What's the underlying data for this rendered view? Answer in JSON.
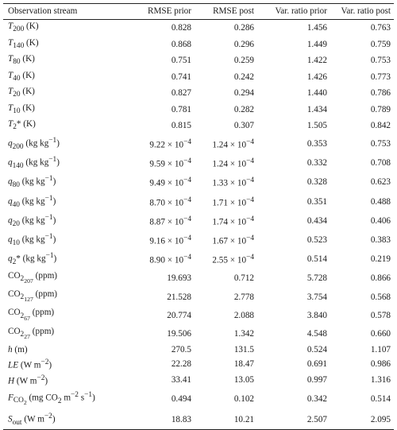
{
  "table": {
    "headers": [
      "Observation stream",
      "RMSE prior",
      "RMSE post",
      "Var. ratio prior",
      "Var. ratio post"
    ],
    "rows": [
      {
        "stream": "T200 (K)",
        "stream_html": "<i>T</i><sub>200</sub> (K)",
        "rmse_prior": "0.828",
        "rmse_post": "0.286",
        "var_prior": "1.456",
        "var_post": "0.763"
      },
      {
        "stream": "T140 (K)",
        "stream_html": "<i>T</i><sub>140</sub> (K)",
        "rmse_prior": "0.868",
        "rmse_post": "0.296",
        "var_prior": "1.449",
        "var_post": "0.759"
      },
      {
        "stream": "T80 (K)",
        "stream_html": "<i>T</i><sub>80</sub> (K)",
        "rmse_prior": "0.751",
        "rmse_post": "0.259",
        "var_prior": "1.422",
        "var_post": "0.753"
      },
      {
        "stream": "T40 (K)",
        "stream_html": "<i>T</i><sub>40</sub> (K)",
        "rmse_prior": "0.741",
        "rmse_post": "0.242",
        "var_prior": "1.426",
        "var_post": "0.773"
      },
      {
        "stream": "T20 (K)",
        "stream_html": "<i>T</i><sub>20</sub> (K)",
        "rmse_prior": "0.827",
        "rmse_post": "0.294",
        "var_prior": "1.440",
        "var_post": "0.786"
      },
      {
        "stream": "T10 (K)",
        "stream_html": "<i>T</i><sub>10</sub> (K)",
        "rmse_prior": "0.781",
        "rmse_post": "0.282",
        "var_prior": "1.434",
        "var_post": "0.789"
      },
      {
        "stream": "T2* (K)",
        "stream_html": "<i>T</i><sub>2</sub>* (K)",
        "rmse_prior": "0.815",
        "rmse_post": "0.307",
        "var_prior": "1.505",
        "var_post": "0.842"
      },
      {
        "stream": "q200 (kg kg−1)",
        "stream_html": "<i>q</i><sub>200</sub> (kg kg<sup>−1</sup>)",
        "rmse_prior": "9.22 × 10−4",
        "rmse_prior_html": "9.22 × 10<sup>−4</sup>",
        "rmse_post": "1.24 × 10−4",
        "rmse_post_html": "1.24 × 10<sup>−4</sup>",
        "var_prior": "0.353",
        "var_post": "0.753"
      },
      {
        "stream": "q140 (kg kg−1)",
        "stream_html": "<i>q</i><sub>140</sub> (kg kg<sup>−1</sup>)",
        "rmse_prior": "9.59 × 10−4",
        "rmse_prior_html": "9.59 × 10<sup>−4</sup>",
        "rmse_post": "1.24 × 10−4",
        "rmse_post_html": "1.24 × 10<sup>−4</sup>",
        "var_prior": "0.332",
        "var_post": "0.708"
      },
      {
        "stream": "q80 (kg kg−1)",
        "stream_html": "<i>q</i><sub>80</sub> (kg kg<sup>−1</sup>)",
        "rmse_prior": "9.49 × 10−4",
        "rmse_prior_html": "9.49 × 10<sup>−4</sup>",
        "rmse_post": "1.33 × 10−4",
        "rmse_post_html": "1.33 × 10<sup>−4</sup>",
        "var_prior": "0.328",
        "var_post": "0.623"
      },
      {
        "stream": "q40 (kg kg−1)",
        "stream_html": "<i>q</i><sub>40</sub> (kg kg<sup>−1</sup>)",
        "rmse_prior": "8.70 × 10−4",
        "rmse_prior_html": "8.70 × 10<sup>−4</sup>",
        "rmse_post": "1.71 × 10−4",
        "rmse_post_html": "1.71 × 10<sup>−4</sup>",
        "var_prior": "0.351",
        "var_post": "0.488"
      },
      {
        "stream": "q20 (kg kg−1)",
        "stream_html": "<i>q</i><sub>20</sub> (kg kg<sup>−1</sup>)",
        "rmse_prior": "8.87 × 10−4",
        "rmse_prior_html": "8.87 × 10<sup>−4</sup>",
        "rmse_post": "1.74 × 10−4",
        "rmse_post_html": "1.74 × 10<sup>−4</sup>",
        "var_prior": "0.434",
        "var_post": "0.406"
      },
      {
        "stream": "q10 (kg kg−1)",
        "stream_html": "<i>q</i><sub>10</sub> (kg kg<sup>−1</sup>)",
        "rmse_prior": "9.16 × 10−4",
        "rmse_prior_html": "9.16 × 10<sup>−4</sup>",
        "rmse_post": "1.67 × 10−4",
        "rmse_post_html": "1.67 × 10<sup>−4</sup>",
        "var_prior": "0.523",
        "var_post": "0.383"
      },
      {
        "stream": "q2* (kg kg−1)",
        "stream_html": "<i>q</i><sub>2</sub>* (kg kg<sup>−1</sup>)",
        "rmse_prior": "8.90 × 10−4",
        "rmse_prior_html": "8.90 × 10<sup>−4</sup>",
        "rmse_post": "2.55 × 10−4",
        "rmse_post_html": "2.55 × 10<sup>−4</sup>",
        "var_prior": "0.514",
        "var_post": "0.219"
      },
      {
        "stream": "CO2207 (ppm)",
        "stream_html": "CO<sub>2<sub>207</sub></sub> (ppm)",
        "rmse_prior": "19.693",
        "rmse_post": "0.712",
        "var_prior": "5.728",
        "var_post": "0.866"
      },
      {
        "stream": "CO2127 (ppm)",
        "stream_html": "CO<sub>2<sub>127</sub></sub> (ppm)",
        "rmse_prior": "21.528",
        "rmse_post": "2.778",
        "var_prior": "3.754",
        "var_post": "0.568"
      },
      {
        "stream": "CO267 (ppm)",
        "stream_html": "CO<sub>2<sub>67</sub></sub> (ppm)",
        "rmse_prior": "20.774",
        "rmse_post": "2.088",
        "var_prior": "3.840",
        "var_post": "0.578"
      },
      {
        "stream": "CO227 (ppm)",
        "stream_html": "CO<sub>2<sub>27</sub></sub> (ppm)",
        "rmse_prior": "19.506",
        "rmse_post": "1.342",
        "var_prior": "4.548",
        "var_post": "0.660"
      },
      {
        "stream": "h (m)",
        "stream_html": "<i>h</i> (m)",
        "rmse_prior": "270.5",
        "rmse_post": "131.5",
        "var_prior": "0.524",
        "var_post": "1.107"
      },
      {
        "stream": "LE (W m−2)",
        "stream_html": "<i>LE</i> (W m<sup>−2</sup>)",
        "rmse_prior": "22.28",
        "rmse_post": "18.47",
        "var_prior": "0.691",
        "var_post": "0.986"
      },
      {
        "stream": "H (W m−2)",
        "stream_html": "<i>H</i> (W m<sup>−2</sup>)",
        "rmse_prior": "33.41",
        "rmse_post": "13.05",
        "var_prior": "0.997",
        "var_post": "1.316"
      },
      {
        "stream": "FCO2 (mg CO2 m−2 s−1)",
        "stream_html": "<i>F</i><sub>CO<sub>2</sub></sub> (mg CO<sub>2</sub> m<sup>−2</sup> s<sup>−1</sup>)",
        "rmse_prior": "0.494",
        "rmse_post": "0.102",
        "var_prior": "0.342",
        "var_post": "0.514"
      },
      {
        "stream": "Sout (W m−2)",
        "stream_html": "<i>S</i><sub>out</sub> (W m<sup>−2</sup>)",
        "rmse_prior": "18.83",
        "rmse_post": "10.21",
        "var_prior": "2.507",
        "var_post": "2.095"
      }
    ]
  }
}
